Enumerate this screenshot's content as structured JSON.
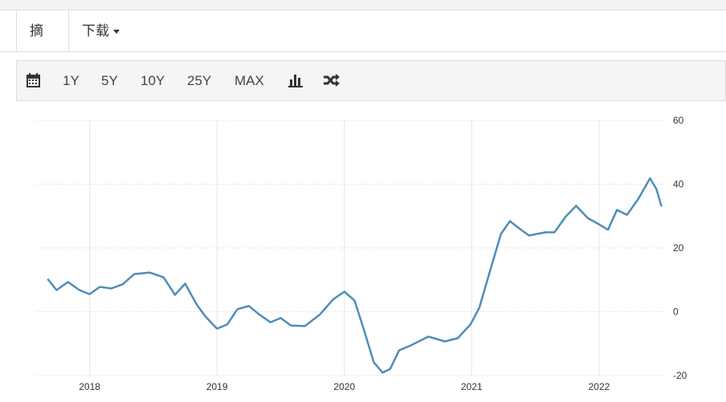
{
  "tabs": [
    "摘要",
    "下载"
  ],
  "toolbar": {
    "buttons": [
      "1Y",
      "5Y",
      "10Y",
      "25Y",
      "MAX"
    ]
  },
  "chart_data": {
    "type": "line",
    "color": "#4f8db8",
    "grid": true,
    "x": [
      2017.67,
      2017.74,
      2017.83,
      2017.92,
      2018.0,
      2018.08,
      2018.17,
      2018.26,
      2018.35,
      2018.47,
      2018.58,
      2018.67,
      2018.75,
      2018.84,
      2018.91,
      2019.0,
      2019.08,
      2019.16,
      2019.25,
      2019.33,
      2019.42,
      2019.5,
      2019.58,
      2019.69,
      2019.81,
      2019.91,
      2020.0,
      2020.08,
      2020.16,
      2020.23,
      2020.3,
      2020.36,
      2020.43,
      2020.52,
      2020.66,
      2020.79,
      2020.89,
      2020.99,
      2021.06,
      2021.14,
      2021.23,
      2021.3,
      2021.38,
      2021.45,
      2021.58,
      2021.65,
      2021.74,
      2021.82,
      2021.91,
      2022.0,
      2022.07,
      2022.14,
      2022.22,
      2022.31,
      2022.4,
      2022.45,
      2022.49
    ],
    "values": [
      10.3,
      6.8,
      9.3,
      6.8,
      5.5,
      7.8,
      7.3,
      8.6,
      11.8,
      12.3,
      10.8,
      5.3,
      8.8,
      2.3,
      -1.5,
      -5.3,
      -4.0,
      0.8,
      1.8,
      -0.8,
      -3.3,
      -2.0,
      -4.3,
      -4.5,
      -0.8,
      3.8,
      6.3,
      3.5,
      -6.5,
      -15.8,
      -19.1,
      -17.9,
      -12.1,
      -10.6,
      -7.8,
      -9.3,
      -8.3,
      -4.0,
      1.3,
      12.3,
      24.4,
      28.4,
      25.9,
      23.9,
      24.9,
      24.9,
      29.9,
      33.2,
      29.4,
      27.4,
      25.7,
      31.9,
      30.4,
      35.5,
      41.8,
      38.5,
      33.0
    ],
    "xlim": [
      2017.58,
      2022.53
    ],
    "xticks": [
      2018,
      2019,
      2020,
      2021,
      2022
    ],
    "ylim": [
      -20,
      60
    ],
    "yticks": [
      -20,
      0,
      20,
      40,
      60
    ]
  }
}
